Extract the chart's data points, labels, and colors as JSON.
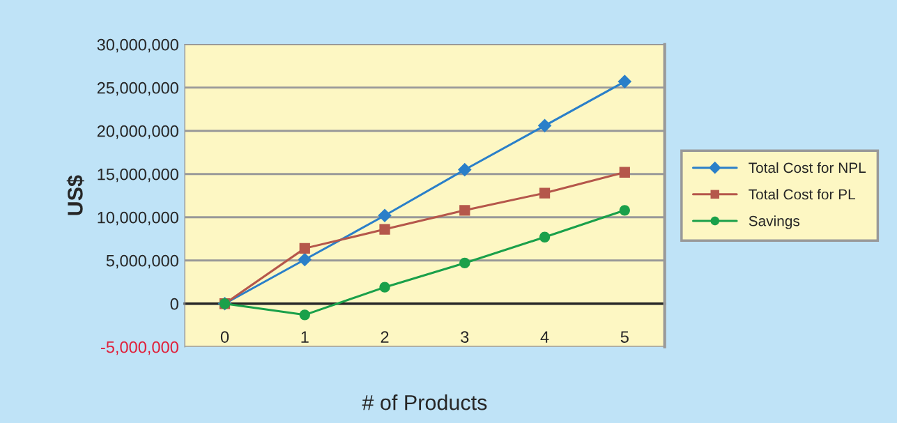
{
  "chart_data": {
    "type": "line",
    "categories": [
      "0",
      "1",
      "2",
      "3",
      "4",
      "5"
    ],
    "xlabel": "# of Products",
    "ylabel": "US$",
    "series": [
      {
        "name": "Total Cost for NPL",
        "color": "#2a7fc9",
        "marker": "diamond",
        "values": [
          0,
          5100000,
          10200000,
          15500000,
          20600000,
          25700000
        ]
      },
      {
        "name": "Total Cost for PL",
        "color": "#b5574b",
        "marker": "square",
        "values": [
          0,
          6400000,
          8600000,
          10800000,
          12800000,
          15200000
        ]
      },
      {
        "name": "Savings",
        "color": "#1aa04a",
        "marker": "circle",
        "values": [
          0,
          -1300000,
          1900000,
          4700000,
          7700000,
          10800000
        ]
      }
    ],
    "ylim": [
      -5000000,
      30000000
    ],
    "yticks": [
      {
        "value": -5000000,
        "label": "-5,000,000"
      },
      {
        "value": 0,
        "label": "0"
      },
      {
        "value": 5000000,
        "label": "5,000,000"
      },
      {
        "value": 10000000,
        "label": "10,000,000"
      },
      {
        "value": 15000000,
        "label": "15,000,000"
      },
      {
        "value": 20000000,
        "label": "20,000,000"
      },
      {
        "value": 25000000,
        "label": "25,000,000"
      },
      {
        "value": 30000000,
        "label": "30,000,000"
      }
    ],
    "grid": "y",
    "legend": "right",
    "line_style": "solid"
  }
}
